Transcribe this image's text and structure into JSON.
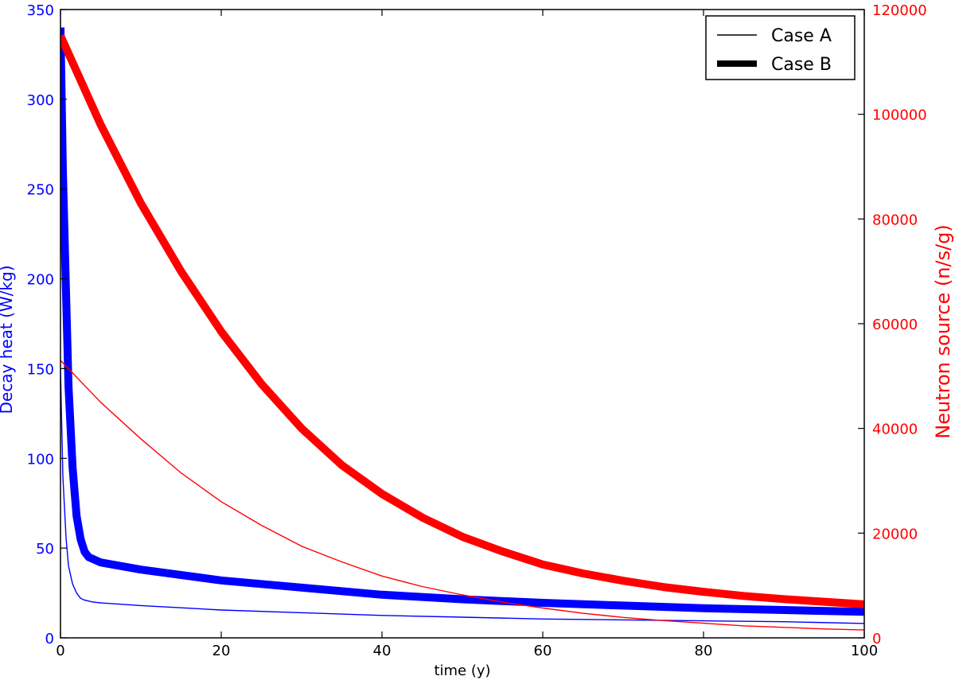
{
  "chart_data": {
    "type": "line",
    "title": "",
    "xlabel": "time (y)",
    "xlim": [
      0,
      100
    ],
    "xticks": [
      "0",
      "20",
      "40",
      "60",
      "80",
      "100"
    ],
    "left_axis": {
      "label": "Decay heat (W/kg)",
      "ylim": [
        0,
        350
      ],
      "ticks": [
        "0",
        "50",
        "100",
        "150",
        "200",
        "250",
        "300",
        "350"
      ],
      "color": "#0000ff"
    },
    "right_axis": {
      "label": "Neutron source (n/s/g)",
      "ylim": [
        0,
        120000
      ],
      "ticks": [
        "0",
        "20000",
        "40000",
        "60000",
        "80000",
        "100000",
        "120000"
      ],
      "color": "#ff0000"
    },
    "legend": {
      "placement": "top-right",
      "entries": [
        {
          "label": "Case A",
          "style": "thin"
        },
        {
          "label": "Case B",
          "style": "thick"
        }
      ]
    },
    "grid": false,
    "series": [
      {
        "case": "Case A",
        "quantity": "decay heat",
        "axis": "left",
        "color": "#0000ff",
        "x": [
          0,
          0.3,
          0.7,
          1,
          1.5,
          2,
          2.5,
          3,
          4,
          5,
          10,
          20,
          30,
          40,
          50,
          60,
          70,
          80,
          90,
          100
        ],
        "y": [
          150,
          90,
          55,
          40,
          30,
          25,
          22,
          21,
          20,
          19.5,
          18,
          15.5,
          14,
          12.5,
          11.5,
          10.5,
          10,
          9.5,
          9,
          8
        ]
      },
      {
        "case": "Case B",
        "quantity": "decay heat",
        "axis": "left",
        "color": "#0000ff",
        "x": [
          0,
          0.3,
          0.7,
          1,
          1.5,
          2,
          2.5,
          3,
          3.5,
          4,
          5,
          10,
          20,
          30,
          40,
          50,
          60,
          70,
          80,
          90,
          100
        ],
        "y": [
          340,
          260,
          190,
          140,
          95,
          68,
          55,
          48,
          45,
          44,
          42,
          38,
          32,
          28,
          24,
          21.5,
          19.5,
          18,
          16.5,
          15.5,
          14.5
        ]
      },
      {
        "case": "Case A",
        "quantity": "neutron source",
        "axis": "right",
        "color": "#ff0000",
        "x": [
          0,
          5,
          10,
          15,
          20,
          25,
          30,
          35,
          40,
          45,
          50,
          55,
          60,
          65,
          70,
          75,
          80,
          85,
          90,
          95,
          100
        ],
        "y": [
          53000,
          45000,
          38000,
          31500,
          26000,
          21500,
          17500,
          14500,
          11800,
          9800,
          8200,
          6800,
          5700,
          4700,
          3900,
          3300,
          2800,
          2300,
          2000,
          1700,
          1500
        ]
      },
      {
        "case": "Case B",
        "quantity": "neutron source",
        "axis": "right",
        "color": "#ff0000",
        "x": [
          0,
          5,
          10,
          15,
          20,
          25,
          30,
          35,
          40,
          45,
          50,
          55,
          60,
          65,
          70,
          75,
          80,
          85,
          90,
          95,
          100
        ],
        "y": [
          115000,
          98000,
          83000,
          70000,
          58500,
          48500,
          40000,
          33000,
          27500,
          23000,
          19300,
          16500,
          14000,
          12300,
          10900,
          9700,
          8800,
          8000,
          7400,
          6900,
          6400
        ]
      }
    ]
  }
}
